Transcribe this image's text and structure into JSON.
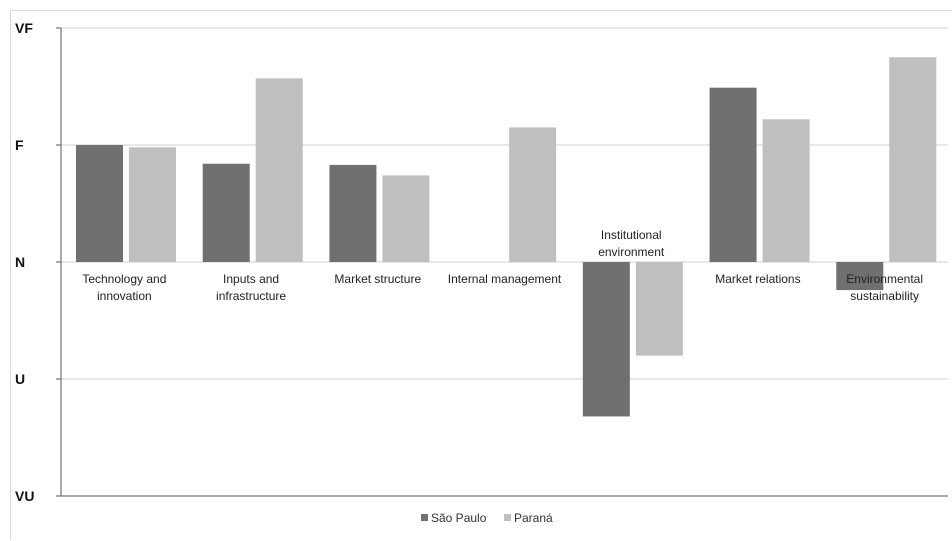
{
  "chart_data": {
    "type": "bar",
    "categories": [
      [
        "Technology and",
        "innovation"
      ],
      [
        "Inputs and",
        "infrastructure"
      ],
      [
        "Market structure"
      ],
      [
        "Internal management"
      ],
      [
        "Institutional",
        "environment"
      ],
      [
        "Market relations"
      ],
      [
        "Environmental",
        "sustainability"
      ]
    ],
    "y_ticks": [
      "VU",
      "U",
      "N",
      "F",
      "VF"
    ],
    "ylim": [
      -2,
      2
    ],
    "series": [
      {
        "name": "São Paulo",
        "color": "#707070",
        "values": [
          1.0,
          0.84,
          0.83,
          0.0,
          -1.32,
          1.49,
          -0.24
        ]
      },
      {
        "name": "Paraná",
        "color": "#bfbfbf",
        "values": [
          0.98,
          1.57,
          0.74,
          1.15,
          -0.8,
          1.22,
          1.75
        ]
      }
    ],
    "grid": true,
    "legend_position": "bottom"
  }
}
